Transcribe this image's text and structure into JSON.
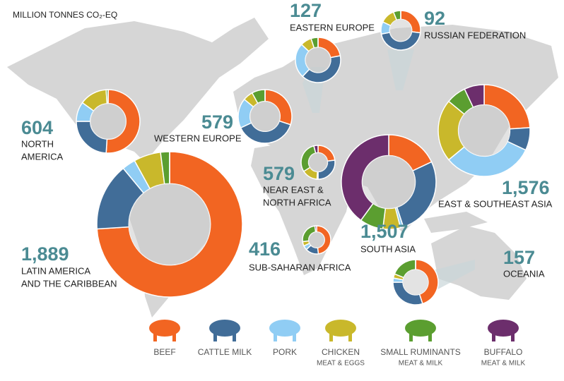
{
  "title": "MILLION TONNES CO₂-EQ",
  "legend": [
    {
      "name": "BEEF",
      "color": "#f26522"
    },
    {
      "name": "CATTLE MILK",
      "color": "#416d98"
    },
    {
      "name": "PORK",
      "color": "#90cdf4"
    },
    {
      "name": "CHICKEN",
      "note": "MEAT & EGGS",
      "color": "#c9b82b"
    },
    {
      "name": "SMALL RUMINANTS",
      "note": "MEAT & MILK",
      "color": "#5b9e30"
    },
    {
      "name": "BUFFALO",
      "note": "MEAT & MILK",
      "color": "#6c2e6c"
    }
  ],
  "chart_data": [
    {
      "type": "donut",
      "title": [
        "NORTH",
        "AMERICA"
      ],
      "total": 604,
      "values": [
        51,
        24,
        10,
        14,
        1,
        0
      ]
    },
    {
      "type": "donut",
      "title": [
        "LATIN AMERICA",
        "AND THE CARIBBEAN"
      ],
      "total": {
        "value": 1889,
        "label": "1,889"
      },
      "values": [
        74,
        15,
        3,
        6,
        2,
        0
      ]
    },
    {
      "type": "donut",
      "title": [
        "WESTERN EUROPE"
      ],
      "total": 579,
      "values": [
        30,
        38,
        18,
        6,
        8,
        0
      ]
    },
    {
      "type": "donut",
      "title": [
        "EASTERN EUROPE"
      ],
      "total": 127,
      "values": [
        22,
        40,
        25,
        8,
        5,
        0
      ]
    },
    {
      "type": "donut",
      "title": [
        "RUSSIAN FEDERATION"
      ],
      "total": 92,
      "values": [
        27,
        45,
        10,
        12,
        6,
        0
      ]
    },
    {
      "type": "donut",
      "title": [
        "NEAR EAST &",
        "NORTH AFRICA"
      ],
      "total": 579,
      "values": [
        23,
        27,
        1,
        15,
        30,
        4
      ]
    },
    {
      "type": "donut",
      "title": [
        "SUB-SAHARAN AFRICA"
      ],
      "total": 416,
      "values": [
        48,
        15,
        5,
        5,
        25,
        2
      ]
    },
    {
      "type": "donut",
      "title": [
        "SOUTH ASIA"
      ],
      "total": {
        "value": 1507,
        "label": "1,507"
      },
      "values": [
        18,
        27,
        1,
        6,
        8,
        40
      ]
    },
    {
      "type": "donut",
      "title": [
        "EAST & SOUTHEAST ASIA"
      ],
      "total": {
        "value": 1576,
        "label": "1,576"
      },
      "values": [
        24,
        8,
        32,
        22,
        7,
        7
      ]
    },
    {
      "type": "donut",
      "title": [
        "OCEANIA"
      ],
      "total": 157,
      "values": [
        45,
        30,
        3,
        3,
        19,
        0
      ]
    }
  ]
}
